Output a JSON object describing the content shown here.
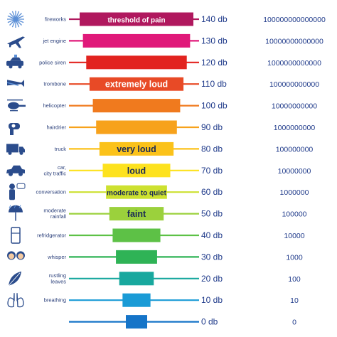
{
  "chart_data": {
    "type": "bar",
    "title": "",
    "xlabel": "",
    "ylabel": "",
    "ylim": [
      0,
      140
    ],
    "grid": false,
    "legend": "none",
    "rows": [
      {
        "source": "fireworks",
        "level": 140,
        "level_label": "140 db",
        "intensity": "100000000000000",
        "band": "threshold of pain",
        "color": "#b0185e",
        "icon": "fireworks-icon"
      },
      {
        "source": "jet engine",
        "level": 130,
        "level_label": "130 db",
        "intensity": "10000000000000",
        "band": "",
        "color": "#e0197a",
        "icon": "jet-engine-icon"
      },
      {
        "source": "police siren",
        "level": 120,
        "level_label": "120 db",
        "intensity": "1000000000000",
        "band": "",
        "color": "#e2231f",
        "icon": "police-siren-icon"
      },
      {
        "source": "trombone",
        "level": 110,
        "level_label": "110 db",
        "intensity": "100000000000",
        "band": "extremely loud",
        "color": "#e84a26",
        "icon": "trombone-icon"
      },
      {
        "source": "helicopter",
        "level": 100,
        "level_label": "100 db",
        "intensity": "10000000000",
        "band": "",
        "color": "#f07a1e",
        "icon": "helicopter-icon"
      },
      {
        "source": "hairdrier",
        "level": 90,
        "level_label": "90 db",
        "intensity": "1000000000",
        "band": "",
        "color": "#f7a21c",
        "icon": "hairdrier-icon"
      },
      {
        "source": "truck",
        "level": 80,
        "level_label": "80 db",
        "intensity": "100000000",
        "band": "very loud",
        "color": "#fbc21a",
        "icon": "truck-icon"
      },
      {
        "source": "car, city traffic",
        "level": 70,
        "level_label": "70 db",
        "intensity": "10000000",
        "band": "loud",
        "color": "#fde21e",
        "icon": "car-icon"
      },
      {
        "source": "conversation",
        "level": 60,
        "level_label": "60 db",
        "intensity": "1000000",
        "band": "moderate to quiet",
        "color": "#cde130",
        "icon": "conversation-icon"
      },
      {
        "source": "moderate rainfall",
        "level": 50,
        "level_label": "50 db",
        "intensity": "100000",
        "band": "faint",
        "color": "#9bd13c",
        "icon": "rainfall-icon"
      },
      {
        "source": "refridgerator",
        "level": 40,
        "level_label": "40 db",
        "intensity": "10000",
        "band": "",
        "color": "#5dc146",
        "icon": "refrigerator-icon"
      },
      {
        "source": "whisper",
        "level": 30,
        "level_label": "30 db",
        "intensity": "1000",
        "band": "",
        "color": "#2fb356",
        "icon": "whisper-icon"
      },
      {
        "source": "rustling leaves",
        "level": 20,
        "level_label": "20 db",
        "intensity": "100",
        "band": "",
        "color": "#18a89e",
        "icon": "leaves-icon"
      },
      {
        "source": "breathing",
        "level": 10,
        "level_label": "10 db",
        "intensity": "10",
        "band": "",
        "color": "#1a9bd6",
        "icon": "lungs-icon"
      },
      {
        "source": "",
        "level": 0,
        "level_label": "0 db",
        "intensity": "0",
        "band": "",
        "color": "#1574c8",
        "icon": ""
      }
    ]
  }
}
